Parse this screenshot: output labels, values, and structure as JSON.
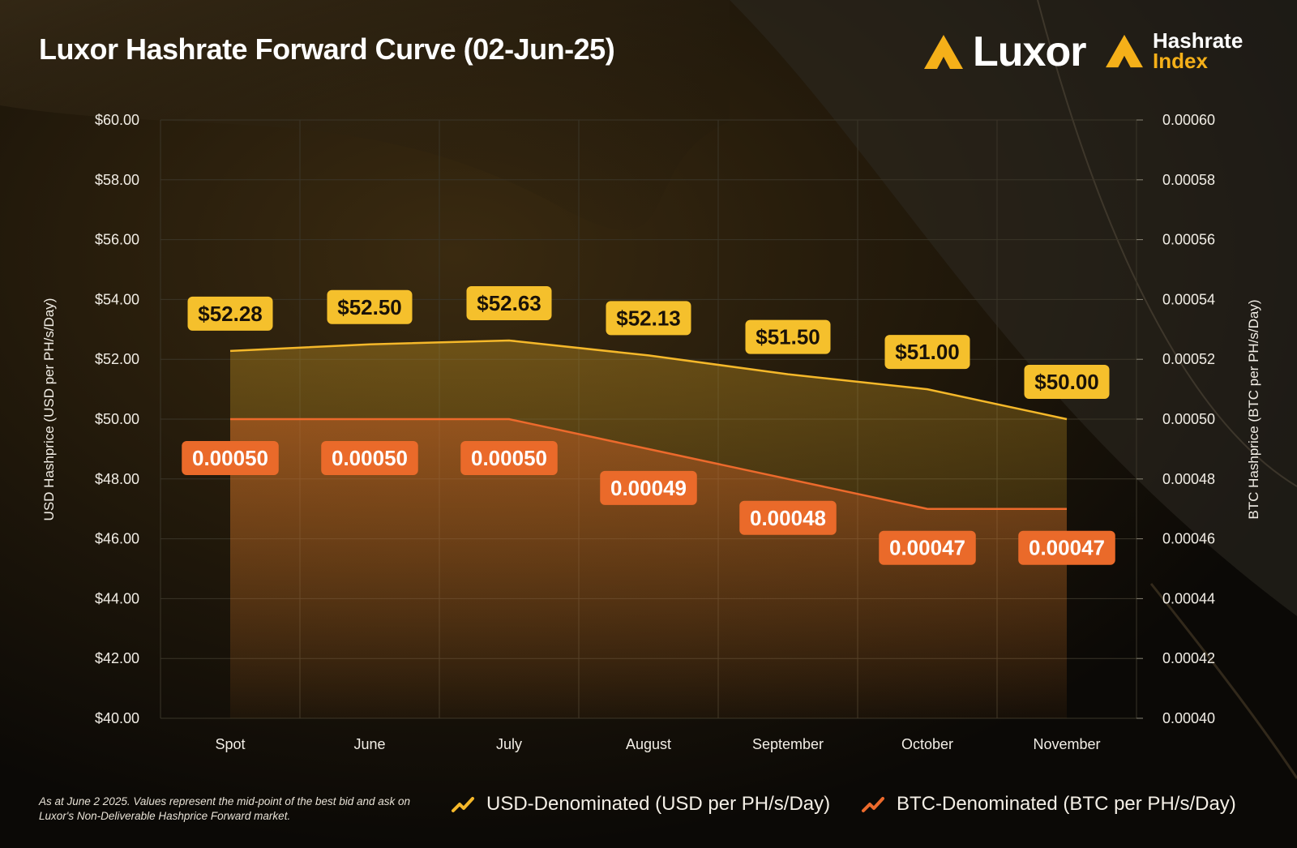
{
  "header": {
    "title": "Luxor Hashrate Forward Curve (02-Jun-25)",
    "brand_luxor": "Luxor",
    "brand_index_line1": "Hashrate",
    "brand_index_line2": "Index"
  },
  "footnote": "As at June 2 2025. Values represent the mid-point of the best bid and ask on Luxor's Non-Deliverable Hashprice Forward market.",
  "colors": {
    "usd": "#f5b82a",
    "btc": "#ec6a2c",
    "grid": "#3a3528",
    "text": "#ffffff"
  },
  "chart_data": {
    "type": "line",
    "categories": [
      "Spot",
      "June",
      "July",
      "August",
      "September",
      "October",
      "November"
    ],
    "y_left": {
      "label": "USD Hashprice (USD per PH/s/Day)",
      "range": [
        40,
        60
      ],
      "ticks": [
        "$40.00",
        "$42.00",
        "$44.00",
        "$46.00",
        "$48.00",
        "$50.00",
        "$52.00",
        "$54.00",
        "$56.00",
        "$58.00",
        "$60.00"
      ]
    },
    "y_right": {
      "label": "BTC Hashprice (BTC per PH/s/Day)",
      "range": [
        0.0004,
        0.0006
      ],
      "ticks": [
        "0.00040",
        "0.00042",
        "0.00044",
        "0.00046",
        "0.00048",
        "0.00050",
        "0.00052",
        "0.00054",
        "0.00056",
        "0.00058",
        "0.00060"
      ]
    },
    "grid": true,
    "legend_position": "bottom-right",
    "series": [
      {
        "name": "USD-Denominated (USD per PH/s/Day)",
        "axis": "left",
        "values": [
          52.28,
          52.5,
          52.63,
          52.13,
          51.5,
          51.0,
          50.0
        ],
        "labels": [
          "$52.28",
          "$52.50",
          "$52.63",
          "$52.13",
          "$51.50",
          "$51.00",
          "$50.00"
        ]
      },
      {
        "name": "BTC-Denominated (BTC per PH/s/Day)",
        "axis": "right",
        "values": [
          0.0005,
          0.0005,
          0.0005,
          0.00049,
          0.00048,
          0.00047,
          0.00047
        ],
        "labels": [
          "0.00050",
          "0.00050",
          "0.00050",
          "0.00049",
          "0.00048",
          "0.00047",
          "0.00047"
        ]
      }
    ]
  }
}
